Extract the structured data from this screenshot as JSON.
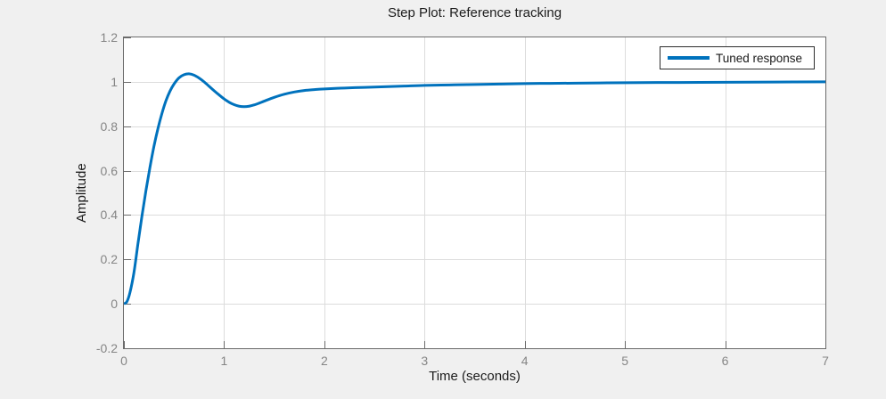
{
  "figure": {
    "title": "Step Plot: Reference tracking",
    "background_color": "#f0f0f0",
    "plot_background_color": "#ffffff"
  },
  "axes": {
    "xlabel": "Time (seconds)",
    "ylabel": "Amplitude",
    "xlim": [
      0,
      7
    ],
    "ylim": [
      -0.2,
      1.2
    ],
    "xticks": [
      0,
      1,
      2,
      3,
      4,
      5,
      6,
      7
    ],
    "xtick_labels": [
      "0",
      "1",
      "2",
      "3",
      "4",
      "5",
      "6",
      "7"
    ],
    "yticks": [
      -0.2,
      0,
      0.2,
      0.4,
      0.6,
      0.8,
      1,
      1.2
    ],
    "ytick_labels": [
      "-0.2",
      "0",
      "0.2",
      "0.4",
      "0.6",
      "0.8",
      "1",
      "1.2"
    ],
    "grid": "on",
    "colors": {
      "grid": "#dcdcdc",
      "axis_box": "#6b6b6b",
      "tick_label": "#858585",
      "text": "#1c1c1c"
    }
  },
  "legend": {
    "position": "northeast",
    "entries": [
      {
        "label": "Tuned response",
        "color": "#0072bd"
      }
    ]
  },
  "chart_data": {
    "type": "line",
    "title": "Step Plot: Reference tracking",
    "xlabel": "Time (seconds)",
    "ylabel": "Amplitude",
    "xlim": [
      0,
      7
    ],
    "ylim": [
      -0.2,
      1.2
    ],
    "grid": "on",
    "legend_position": "northeast",
    "series": [
      {
        "name": "Tuned response",
        "color": "#0072bd",
        "line_width": 3,
        "x": [
          0,
          0.03,
          0.06,
          0.1,
          0.14,
          0.18,
          0.22,
          0.26,
          0.3,
          0.34,
          0.38,
          0.42,
          0.46,
          0.5,
          0.55,
          0.6,
          0.65,
          0.7,
          0.75,
          0.8,
          0.85,
          0.9,
          0.95,
          1.0,
          1.05,
          1.1,
          1.15,
          1.2,
          1.25,
          1.3,
          1.35,
          1.4,
          1.5,
          1.6,
          1.7,
          1.8,
          1.9,
          2.0,
          2.2,
          2.4,
          2.6,
          2.8,
          3.0,
          3.25,
          3.5,
          3.75,
          4.0,
          4.25,
          4.5,
          4.75,
          5.0,
          5.5,
          6.0,
          6.5,
          7.0
        ],
        "y": [
          0,
          0.01,
          0.05,
          0.14,
          0.27,
          0.395,
          0.51,
          0.615,
          0.71,
          0.79,
          0.858,
          0.915,
          0.958,
          0.99,
          1.018,
          1.032,
          1.036,
          1.03,
          1.017,
          1.0,
          0.98,
          0.96,
          0.941,
          0.923,
          0.908,
          0.897,
          0.89,
          0.888,
          0.89,
          0.896,
          0.904,
          0.913,
          0.93,
          0.944,
          0.954,
          0.961,
          0.965,
          0.968,
          0.972,
          0.975,
          0.978,
          0.981,
          0.984,
          0.986,
          0.988,
          0.99,
          0.992,
          0.993,
          0.994,
          0.995,
          0.996,
          0.997,
          0.998,
          0.999,
          1.0
        ]
      }
    ],
    "annotations": {
      "peak_value": 1.036,
      "peak_time": 0.65,
      "undershoot_value": 0.888,
      "undershoot_time": 1.2,
      "final_value": 1.0
    }
  }
}
